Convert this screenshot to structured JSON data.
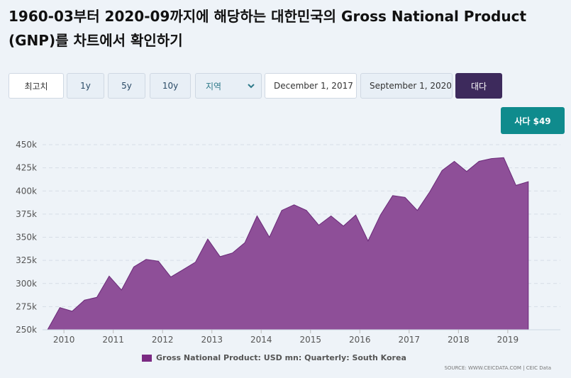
{
  "title": "1960-03부터 2020-09까지에 해당하는 대한민국의 Gross National Product (GNP)를 차트에서 확인하기",
  "toolbar": {
    "range_buttons": [
      "최고치",
      "1y",
      "5y",
      "10y"
    ],
    "region_label": "지역",
    "date_from": "December 1, 2017",
    "date_to": "September 1, 2020",
    "go_label": "대다"
  },
  "buy_label": "사다 $49",
  "source": "SOURCE: WWW.CEICDATA.COM | CEIC Data",
  "colors": {
    "area_fill": "#8e4f98",
    "area_stroke": "#6a2a78",
    "legend": "#7b2a83",
    "buy": "#0f8b8d",
    "go": "#3d2a5c"
  },
  "chart_data": {
    "type": "area",
    "title": "",
    "xlabel": "",
    "ylabel": "",
    "ylim": [
      250000,
      450000
    ],
    "y_ticks": [
      250000,
      275000,
      300000,
      325000,
      350000,
      375000,
      400000,
      425000,
      450000
    ],
    "y_tick_labels": [
      "250k",
      "275k",
      "300k",
      "325k",
      "350k",
      "375k",
      "400k",
      "425k",
      "450k"
    ],
    "x_tick_labels": [
      "2010",
      "2011",
      "2012",
      "2013",
      "2014",
      "2015",
      "2016",
      "2017",
      "2018",
      "2019"
    ],
    "grid": true,
    "legend_position": "bottom",
    "series": [
      {
        "name": "Gross National Product: USD mn: Quarterly: South Korea",
        "x": [
          "2009-09",
          "2009-12",
          "2010-03",
          "2010-06",
          "2010-09",
          "2010-12",
          "2011-03",
          "2011-06",
          "2011-09",
          "2011-12",
          "2012-03",
          "2012-06",
          "2012-09",
          "2012-12",
          "2013-03",
          "2013-06",
          "2013-09",
          "2013-12",
          "2014-03",
          "2014-06",
          "2014-09",
          "2014-12",
          "2015-03",
          "2015-06",
          "2015-09",
          "2015-12",
          "2016-03",
          "2016-06",
          "2016-09",
          "2016-12",
          "2017-03",
          "2017-06",
          "2017-09",
          "2017-12",
          "2018-03",
          "2018-06",
          "2018-09",
          "2018-12",
          "2019-03",
          "2019-06",
          "2019-09"
        ],
        "values": [
          250000,
          274000,
          270000,
          282000,
          285000,
          308000,
          293000,
          318000,
          326000,
          324000,
          307000,
          315000,
          323000,
          348000,
          329000,
          333000,
          344000,
          373000,
          350000,
          379000,
          385000,
          379000,
          363000,
          373000,
          362000,
          374000,
          346000,
          374000,
          395000,
          393000,
          379000,
          399000,
          422000,
          432000,
          421000,
          432000,
          435000,
          436000,
          406000,
          410000,
          null
        ]
      }
    ]
  }
}
